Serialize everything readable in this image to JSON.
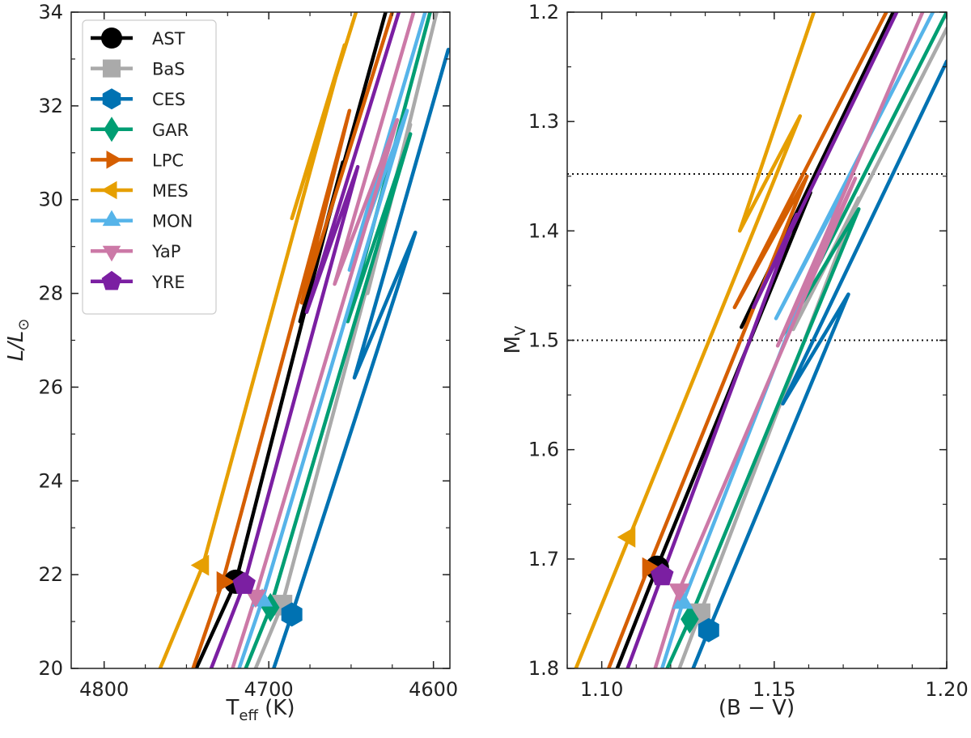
{
  "colors": {
    "AST": "#000000",
    "BaS": "#aaaaaa",
    "CES": "#0072b2",
    "GAR": "#009e73",
    "LPC": "#d55e00",
    "MES": "#e69f00",
    "MON": "#56b4e9",
    "YaP": "#cc79a7",
    "YRE": "#7b1fa2"
  },
  "chart_data": [
    {
      "type": "line",
      "panel": "left",
      "xlabel": "T",
      "xlabel_sub": "eff",
      "xlabel_unit": " (K)",
      "ylabel": "L/L",
      "ylabel_symbol": "⊙",
      "xlim": [
        4820,
        4590
      ],
      "ylim": [
        20,
        34
      ],
      "x_ticks": [
        4800,
        4700,
        4600
      ],
      "x_tick_labels": [
        "4800",
        "4700",
        "4600"
      ],
      "y_ticks": [
        20,
        22,
        24,
        26,
        28,
        30,
        32,
        34
      ],
      "y_tick_labels": [
        "20",
        "22",
        "24",
        "26",
        "28",
        "30",
        "32",
        "34"
      ],
      "legend_position": "top-left",
      "series": [
        {
          "name": "AST",
          "marker": "circle",
          "zams": [
            4720,
            21.85
          ],
          "track": [
            [
              4744,
              20.0
            ],
            [
              4720,
              21.85
            ],
            [
              4655,
              30.8
            ],
            [
              4681,
              27.4
            ],
            [
              4629,
              34.0
            ]
          ]
        },
        {
          "name": "BaS",
          "marker": "square",
          "zams": [
            4692,
            21.35
          ],
          "track": [
            [
              4708,
              20.0
            ],
            [
              4692,
              21.35
            ],
            [
              4614,
              31.6
            ],
            [
              4640,
              28.0
            ],
            [
              4598,
              34.0
            ]
          ]
        },
        {
          "name": "CES",
          "marker": "hexagon",
          "zams": [
            4686,
            21.15
          ],
          "track": [
            [
              4697,
              20.0
            ],
            [
              4686,
              21.15
            ],
            [
              4611,
              29.3
            ],
            [
              4648,
              26.2
            ],
            [
              4591,
              33.2
            ]
          ]
        },
        {
          "name": "GAR",
          "marker": "diamond",
          "zams": [
            4699,
            21.3
          ],
          "track": [
            [
              4714,
              20.0
            ],
            [
              4699,
              21.3
            ],
            [
              4614,
              31.4
            ],
            [
              4652,
              27.4
            ],
            [
              4602,
              34.0
            ]
          ]
        },
        {
          "name": "LPC",
          "marker": "triangle-right",
          "zams": [
            4728,
            21.85
          ],
          "track": [
            [
              4746,
              20.0
            ],
            [
              4728,
              21.85
            ],
            [
              4651,
              31.9
            ],
            [
              4680,
              27.8
            ],
            [
              4625,
              34.0
            ]
          ]
        },
        {
          "name": "MES",
          "marker": "triangle-left",
          "zams": [
            4740,
            22.2
          ],
          "track": [
            [
              4766,
              20.0
            ],
            [
              4740,
              22.2
            ],
            [
              4654,
              33.3
            ],
            [
              4686,
              29.6
            ],
            [
              4647,
              34.0
            ]
          ]
        },
        {
          "name": "MON",
          "marker": "triangle-up",
          "zams": [
            4704,
            21.45
          ],
          "track": [
            [
              4718,
              20.0
            ],
            [
              4704,
              21.45
            ],
            [
              4616,
              31.9
            ],
            [
              4651,
              28.5
            ],
            [
              4605,
              34.0
            ]
          ]
        },
        {
          "name": "YaP",
          "marker": "triangle-down",
          "zams": [
            4708,
            21.55
          ],
          "track": [
            [
              4722,
              20.0
            ],
            [
              4708,
              21.55
            ],
            [
              4622,
              31.7
            ],
            [
              4660,
              28.2
            ],
            [
              4612,
              34.0
            ]
          ]
        },
        {
          "name": "YRE",
          "marker": "pentagon",
          "zams": [
            4715,
            21.8
          ],
          "track": [
            [
              4735,
              20.0
            ],
            [
              4715,
              21.8
            ],
            [
              4646,
              30.7
            ],
            [
              4677,
              27.6
            ],
            [
              4621,
              34.0
            ]
          ]
        }
      ]
    },
    {
      "type": "line",
      "panel": "right",
      "xlabel": "(B − V)",
      "ylabel": "M",
      "ylabel_sub": "V",
      "xlim": [
        1.09,
        1.2
      ],
      "ylim": [
        1.8,
        1.2
      ],
      "x_ticks": [
        1.1,
        1.15,
        1.2
      ],
      "x_tick_labels": [
        "1.10",
        "1.15",
        "1.20"
      ],
      "y_ticks": [
        1.2,
        1.3,
        1.4,
        1.5,
        1.6,
        1.7,
        1.8
      ],
      "y_tick_labels": [
        "1.2",
        "1.3",
        "1.4",
        "1.5",
        "1.6",
        "1.7",
        "1.8"
      ],
      "hlines": [
        1.348,
        1.5
      ],
      "series": [
        {
          "name": "AST",
          "marker": "circle",
          "zams": [
            1.116,
            1.708
          ],
          "track": [
            [
              1.1045,
              1.8
            ],
            [
              1.116,
              1.708
            ],
            [
              1.1605,
              1.365
            ],
            [
              1.1405,
              1.488
            ],
            [
              1.1845,
              1.2
            ]
          ]
        },
        {
          "name": "BaS",
          "marker": "square",
          "zams": [
            1.1285,
            1.75
          ],
          "track": [
            [
              1.1225,
              1.8
            ],
            [
              1.1285,
              1.75
            ],
            [
              1.1745,
              1.37
            ],
            [
              1.1555,
              1.49
            ],
            [
              1.2,
              1.215
            ]
          ]
        },
        {
          "name": "CES",
          "marker": "hexagon",
          "zams": [
            1.131,
            1.765
          ],
          "track": [
            [
              1.1265,
              1.8
            ],
            [
              1.131,
              1.765
            ],
            [
              1.1715,
              1.458
            ],
            [
              1.1525,
              1.558
            ],
            [
              1.2,
              1.245
            ]
          ]
        },
        {
          "name": "GAR",
          "marker": "diamond",
          "zams": [
            1.1255,
            1.755
          ],
          "track": [
            [
              1.119,
              1.8
            ],
            [
              1.1255,
              1.755
            ],
            [
              1.1745,
              1.38
            ],
            [
              1.1525,
              1.495
            ],
            [
              1.2,
              1.2
            ]
          ]
        },
        {
          "name": "LPC",
          "marker": "triangle-right",
          "zams": [
            1.1135,
            1.708
          ],
          "track": [
            [
              1.102,
              1.8
            ],
            [
              1.1135,
              1.708
            ],
            [
              1.1595,
              1.35
            ],
            [
              1.1385,
              1.47
            ],
            [
              1.1825,
              1.2
            ]
          ]
        },
        {
          "name": "MES",
          "marker": "triangle-left",
          "zams": [
            1.108,
            1.68
          ],
          "track": [
            [
              1.0925,
              1.8
            ],
            [
              1.108,
              1.68
            ],
            [
              1.1575,
              1.295
            ],
            [
              1.14,
              1.4
            ],
            [
              1.1615,
              1.2
            ]
          ]
        },
        {
          "name": "MON",
          "marker": "triangle-up",
          "zams": [
            1.1235,
            1.74
          ],
          "track": [
            [
              1.1175,
              1.8
            ],
            [
              1.1235,
              1.74
            ],
            [
              1.1705,
              1.36
            ],
            [
              1.1505,
              1.48
            ],
            [
              1.196,
              1.2
            ]
          ]
        },
        {
          "name": "YaP",
          "marker": "triangle-down",
          "zams": [
            1.1225,
            1.728
          ],
          "track": [
            [
              1.1155,
              1.8
            ],
            [
              1.1225,
              1.728
            ],
            [
              1.1735,
              1.352
            ],
            [
              1.151,
              1.505
            ],
            [
              1.193,
              1.2
            ]
          ]
        },
        {
          "name": "YRE",
          "marker": "pentagon",
          "zams": [
            1.1175,
            1.715
          ],
          "track": [
            [
              1.1075,
              1.8
            ],
            [
              1.1175,
              1.715
            ],
            [
              1.1565,
              1.385
            ],
            [
              1.144,
              1.47
            ],
            [
              1.1855,
              1.2
            ]
          ]
        }
      ]
    }
  ]
}
